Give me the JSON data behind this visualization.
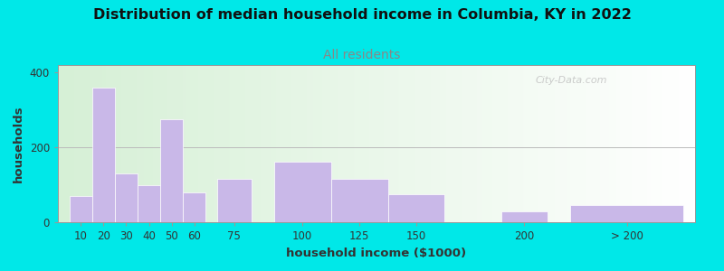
{
  "title": "Distribution of median household income in Columbia, KY in 2022",
  "subtitle": "All residents",
  "xlabel": "household income ($1000)",
  "ylabel": "households",
  "bar_color": "#c9b8e8",
  "background_outer": "#00e8e8",
  "background_inner_left": "#d6f0d6",
  "background_inner_right": "#ffffff",
  "values": [
    70,
    360,
    130,
    100,
    275,
    80,
    115,
    162,
    115,
    75,
    28,
    45
  ],
  "bar_lefts": [
    10,
    20,
    30,
    40,
    50,
    60,
    75,
    100,
    125,
    150,
    200,
    230
  ],
  "bar_widths": [
    10,
    10,
    10,
    10,
    10,
    10,
    15,
    25,
    25,
    25,
    20,
    50
  ],
  "xlim_left": 5,
  "xlim_right": 285,
  "ylim": [
    0,
    420
  ],
  "yticks": [
    0,
    200,
    400
  ],
  "xtick_labels": [
    "10",
    "20",
    "30",
    "40",
    "50",
    "60",
    "75",
    "100",
    "125",
    "150",
    "200",
    "> 200"
  ],
  "watermark": "City-Data.com",
  "title_fontsize": 11.5,
  "subtitle_fontsize": 10,
  "axis_fontsize": 9.5,
  "tick_fontsize": 8.5,
  "subtitle_color": "#888888",
  "title_color": "#111111",
  "label_color": "#333333"
}
